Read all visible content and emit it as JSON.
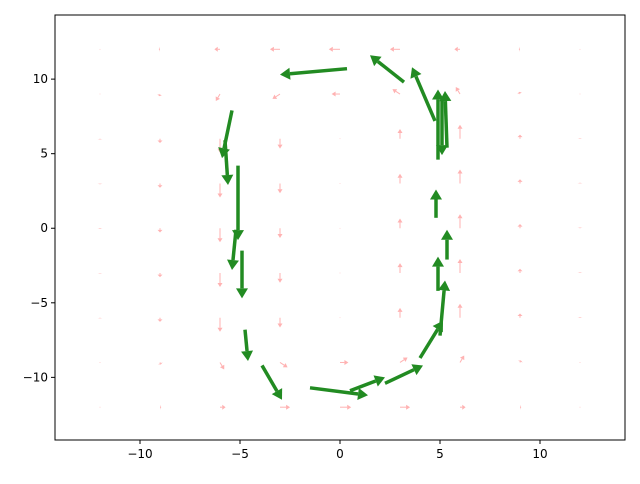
{
  "chart_data": {
    "type": "quiver",
    "xlim": [
      -14.25,
      14.25
    ],
    "ylim": [
      -14.2,
      14.3
    ],
    "xticks": [
      {
        "value": -10,
        "label": "−10"
      },
      {
        "value": -5,
        "label": "−5"
      },
      0,
      5,
      10
    ],
    "yticks": [
      {
        "value": -10,
        "label": "−10"
      },
      {
        "value": -5,
        "label": "−5"
      },
      0,
      5,
      10
    ],
    "series": [
      {
        "color": "#ff7f7f",
        "x": [
          -12,
          -9,
          -6,
          -3,
          0,
          3,
          6,
          9,
          12,
          -12,
          -9,
          -6,
          -3,
          0,
          3,
          6,
          9,
          12,
          -12,
          -9,
          -6,
          -3,
          0,
          3,
          6,
          9,
          12,
          -12,
          -9,
          -6,
          -3,
          0,
          3,
          6,
          9,
          12,
          -12,
          -9,
          -6,
          -3,
          0,
          3,
          6,
          9,
          12,
          -12,
          -9,
          -6,
          -3,
          0,
          3,
          6,
          9,
          12,
          -12,
          -9,
          -6,
          -3,
          0,
          3,
          6,
          9,
          12,
          -12,
          -9,
          -6,
          -3,
          0,
          3,
          6,
          9,
          12,
          -12,
          -9,
          -6,
          -3,
          0,
          3,
          6,
          9,
          12
        ],
        "y": [
          -12,
          -12,
          -12,
          -12,
          -12,
          -12,
          -12,
          -12,
          -12,
          -9,
          -9,
          -9,
          -9,
          -9,
          -9,
          -9,
          -9,
          -9,
          -6,
          -6,
          -6,
          -6,
          -6,
          -6,
          -6,
          -6,
          -6,
          -3,
          -3,
          -3,
          -3,
          -3,
          -3,
          -3,
          -3,
          -3,
          0,
          0,
          0,
          0,
          0,
          0,
          0,
          0,
          0,
          3,
          3,
          3,
          3,
          3,
          3,
          3,
          3,
          3,
          6,
          6,
          6,
          6,
          6,
          6,
          6,
          6,
          6,
          9,
          9,
          9,
          9,
          9,
          9,
          9,
          9,
          9,
          12,
          12,
          12,
          12,
          12,
          12,
          12,
          12,
          12
        ],
        "u": [
          0,
          0.08,
          0.4,
          0.72,
          0.8,
          0.72,
          0.4,
          0.08,
          0,
          0,
          0.06,
          0.3,
          0.54,
          0.6,
          0.54,
          0.3,
          0.06,
          0,
          0,
          0,
          0,
          0,
          0,
          0,
          0,
          0,
          0,
          0,
          0,
          0,
          0,
          0,
          0,
          0,
          0,
          0,
          0,
          0,
          0,
          0,
          0,
          0,
          0,
          0,
          0,
          0,
          0,
          0,
          0,
          0,
          0,
          0,
          0,
          0,
          0,
          0,
          0,
          0,
          0,
          0,
          0,
          0,
          0,
          0,
          -0.06,
          -0.3,
          -0.54,
          -0.6,
          -0.54,
          -0.3,
          -0.06,
          0,
          0,
          -0.08,
          -0.4,
          -0.72,
          -0.8,
          -0.72,
          -0.4,
          -0.08,
          0
        ],
        "v": [
          0,
          0,
          0,
          0,
          0,
          0,
          0,
          0,
          0,
          -0.03,
          -0.15,
          -0.5,
          -0.35,
          0,
          0.35,
          0.5,
          0.15,
          0.03,
          -0.05,
          -0.3,
          -1,
          -0.7,
          0,
          0.7,
          1,
          0.3,
          0.05,
          -0.05,
          -0.3,
          -1,
          -0.7,
          0,
          0.7,
          1,
          0.3,
          0.05,
          -0.05,
          -0.3,
          -1,
          -0.7,
          0,
          0.7,
          1,
          0.3,
          0.05,
          -0.05,
          -0.3,
          -1,
          -0.7,
          0,
          0.7,
          1,
          0.3,
          0.05,
          -0.05,
          -0.3,
          -1,
          -0.7,
          0,
          0.7,
          1,
          0.3,
          0.05,
          -0.03,
          -0.15,
          -0.5,
          -0.35,
          0,
          0.35,
          0.5,
          0.15,
          0.03,
          0,
          0,
          0,
          0,
          0,
          0,
          0,
          0,
          0
        ]
      },
      {
        "color": "#228b22",
        "x": [
          0.35,
          3.2,
          4.75,
          5.35,
          4.9,
          4.8,
          5.35,
          4.9,
          5,
          4,
          2.25,
          0.5,
          -1.5,
          -3.9,
          -4.75,
          -4.9,
          -5.2,
          -5.1,
          -5.4,
          -5.75,
          5.1
        ],
        "y": [
          10.7,
          9.8,
          7.2,
          5.4,
          4.6,
          0.7,
          -2.1,
          -4.2,
          -7.2,
          -8.7,
          -10.4,
          -10.9,
          -10.7,
          -9.2,
          -6.8,
          -1.5,
          -0.1,
          4.2,
          7.9,
          5.9,
          8.7
        ],
        "u": [
          -3.35,
          -1.7,
          -1.15,
          -0.1,
          0,
          0,
          0,
          0,
          0.25,
          1.15,
          1.9,
          1.75,
          2.9,
          1,
          0.15,
          0,
          -0.2,
          0,
          -0.5,
          0.15,
          0
        ],
        "v": [
          -0.4,
          1.8,
          3.6,
          3.8,
          4.7,
          1.9,
          2,
          2.3,
          3.7,
          2.5,
          1.2,
          0.9,
          -0.5,
          -2.3,
          -2.1,
          -3.2,
          -2.7,
          -5,
          -3.2,
          -3,
          -3.8
        ]
      }
    ]
  }
}
